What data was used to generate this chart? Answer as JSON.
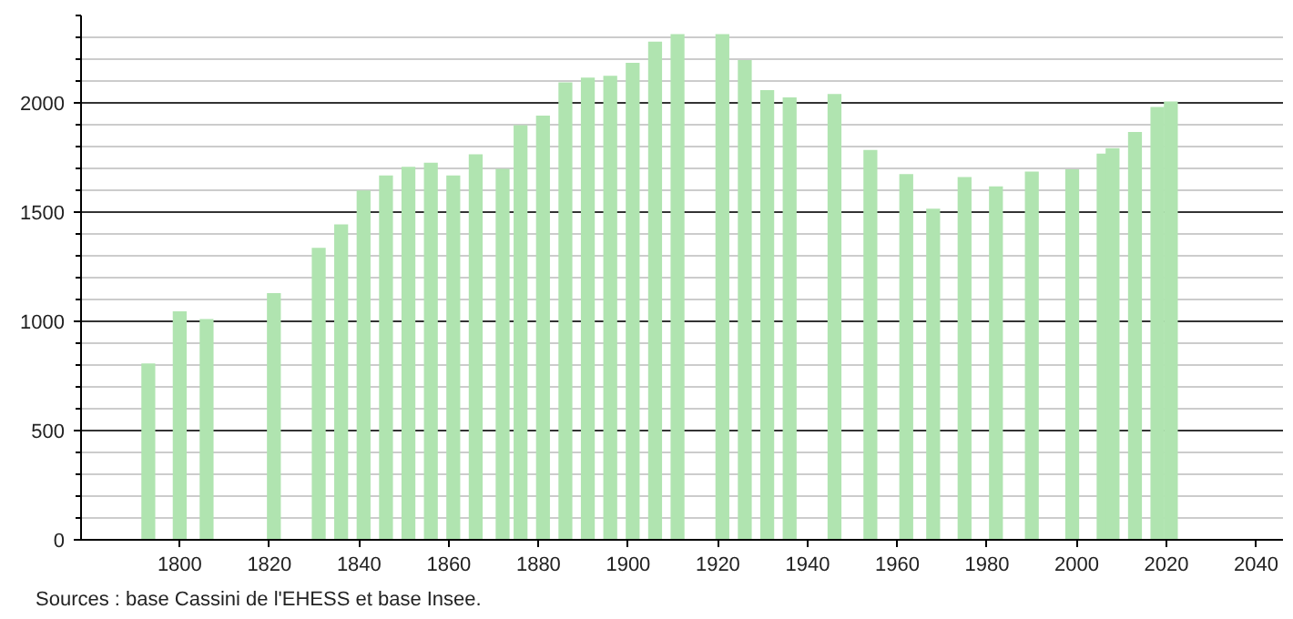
{
  "chart_data": {
    "type": "bar",
    "x": [
      1793,
      1800,
      1806,
      1821,
      1831,
      1836,
      1841,
      1846,
      1851,
      1856,
      1861,
      1866,
      1872,
      1876,
      1881,
      1886,
      1891,
      1896,
      1901,
      1906,
      1911,
      1921,
      1926,
      1931,
      1936,
      1946,
      1954,
      1962,
      1968,
      1975,
      1982,
      1990,
      1999,
      2006,
      2008,
      2013,
      2018,
      2021
    ],
    "values": [
      807,
      1046,
      1010,
      1129,
      1336,
      1444,
      1599,
      1668,
      1707,
      1726,
      1668,
      1765,
      1698,
      1898,
      1942,
      2094,
      2116,
      2124,
      2183,
      2280,
      2315,
      2315,
      2196,
      2058,
      2025,
      2041,
      1784,
      1674,
      1516,
      1660,
      1618,
      1685,
      1696,
      1768,
      1793,
      1867,
      1981,
      2006
    ],
    "color": "#b0e4b0",
    "xlim": [
      1778,
      2046
    ],
    "xticks": [
      1800,
      1820,
      1840,
      1860,
      1880,
      1900,
      1920,
      1940,
      1960,
      1980,
      2000,
      2020,
      2040
    ],
    "ylim": [
      0,
      2400
    ],
    "yticks": [
      0,
      {
        "value": 100,
        "label": null
      },
      {
        "value": 200,
        "label": null
      },
      {
        "value": 300,
        "label": null
      },
      {
        "value": 400,
        "label": null
      },
      500,
      {
        "value": 600,
        "label": null
      },
      {
        "value": 700,
        "label": null
      },
      {
        "value": 800,
        "label": null
      },
      {
        "value": 900,
        "label": null
      },
      1000,
      {
        "value": 1100,
        "label": null
      },
      {
        "value": 1200,
        "label": null
      },
      {
        "value": 1300,
        "label": null
      },
      {
        "value": 1400,
        "label": null
      },
      1500,
      {
        "value": 1600,
        "label": null
      },
      {
        "value": 1700,
        "label": null
      },
      {
        "value": 1800,
        "label": null
      },
      {
        "value": 1900,
        "label": null
      },
      2000,
      {
        "value": 2100,
        "label": null
      },
      {
        "value": 2200,
        "label": null
      },
      {
        "value": 2300,
        "label": null
      },
      {
        "value": 2400,
        "label": null
      }
    ],
    "grid": "y",
    "annotations": [
      "Sources : base Cassini de l'EHESS et base Insee."
    ]
  }
}
